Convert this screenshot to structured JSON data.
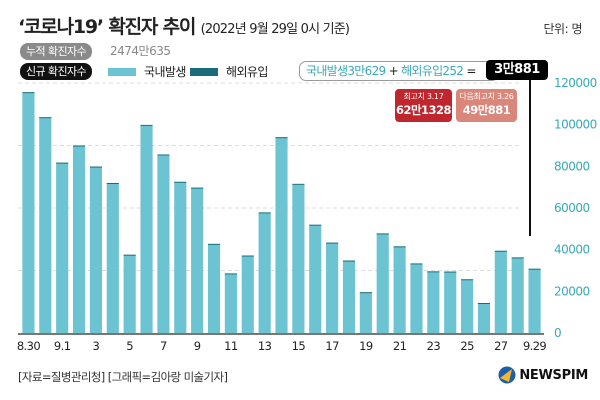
{
  "header": {
    "title": "‘코로나19’ 확진자 추이",
    "subtitle": "(2022년 9월 29일 0시 기준)",
    "unit": "단위: 명"
  },
  "summary": {
    "cumulative_label": "누적 확진자수",
    "cumulative_value": "2474만635",
    "new_label": "신규 확진자수"
  },
  "equation": {
    "domestic": "국내발생3만629",
    "plus": "+",
    "overseas": "해외유입252",
    "equals": "=",
    "total": "3만881"
  },
  "peaks": [
    {
      "label": "최고치 3.17",
      "value": "62만1328",
      "color": "#c0262e"
    },
    {
      "label": "다음최고치 3.26",
      "value": "49만881",
      "color": "#d9877a"
    }
  ],
  "footer": {
    "source": "[자료=질병관리청] [그래픽=김아랑 미술기자]",
    "logo": "NEWSPIM"
  },
  "colors": {
    "domestic": "#6cc4d2",
    "overseas": "#1a6c78",
    "axis_label": "#3aa9b5",
    "grid": "#dddddd"
  },
  "chart_data": {
    "type": "bar",
    "stacked": true,
    "title": "‘코로나19’ 확진자 추이",
    "xlabel": "",
    "ylabel": "단위: 명",
    "ylim": [
      0,
      120000
    ],
    "yticks": [
      "0",
      "20000",
      "40000",
      "60000",
      "80000",
      "100000",
      "120000"
    ],
    "ytick_values": [
      0,
      20000,
      40000,
      60000,
      80000,
      100000,
      120000
    ],
    "grid": true,
    "legend": [
      "국내발생",
      "해외유입"
    ],
    "legend_position": "top-left",
    "categories": [
      "8.30",
      "8.31",
      "9.1",
      "9.2",
      "9.3",
      "9.4",
      "9.5",
      "9.6",
      "9.7",
      "9.8",
      "9.9",
      "9.10",
      "9.11",
      "9.12",
      "9.13",
      "9.14",
      "9.15",
      "9.16",
      "9.17",
      "9.18",
      "9.19",
      "9.20",
      "9.21",
      "9.22",
      "9.23",
      "9.24",
      "9.25",
      "9.26",
      "9.27",
      "9.28",
      "9.29"
    ],
    "xtick_labels": [
      "8.30",
      "",
      "9.1",
      "",
      "3",
      "",
      "5",
      "",
      "7",
      "",
      "9",
      "",
      "11",
      "",
      "13",
      "",
      "15",
      "",
      "17",
      "",
      "19",
      "",
      "21",
      "",
      "23",
      "",
      "25",
      "",
      "27",
      "",
      "9.29"
    ],
    "series": [
      {
        "name": "국내발생",
        "values": [
          115200,
          103200,
          81400,
          89600,
          79500,
          71700,
          37300,
          99500,
          85300,
          72300,
          69500,
          42500,
          28300,
          36900,
          57600,
          93600,
          71200,
          51600,
          43000,
          34500,
          19300,
          47500,
          41300,
          33100,
          29300,
          29200,
          25500,
          14100,
          39200,
          36000,
          30629
        ]
      },
      {
        "name": "해외유입",
        "values": [
          400,
          400,
          400,
          400,
          400,
          300,
          300,
          400,
          400,
          300,
          300,
          300,
          300,
          300,
          300,
          400,
          400,
          400,
          400,
          300,
          300,
          300,
          300,
          300,
          300,
          300,
          300,
          300,
          300,
          300,
          252
        ]
      }
    ]
  }
}
